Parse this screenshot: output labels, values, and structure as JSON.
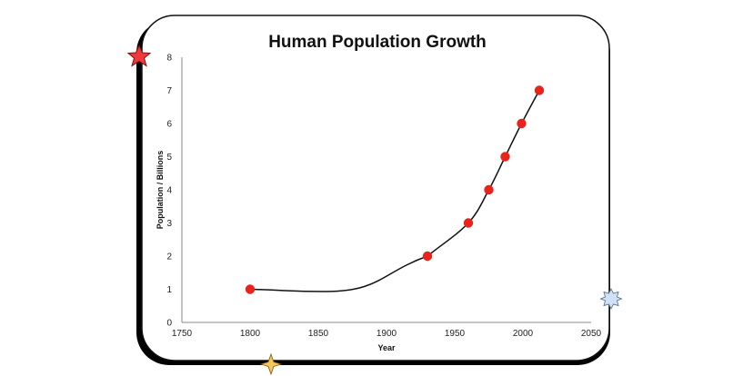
{
  "colors": {
    "frame_border": "#111111",
    "frame_shadow": "#000000",
    "point": "#e8231b",
    "curve": "#111111",
    "star_red": "#ee3a3a",
    "star_yellow": "#f7c65a",
    "star_blue": "#cfe0f7"
  },
  "decorations": [
    "red-star-icon",
    "yellow-sparkle-icon",
    "blue-badge-icon"
  ],
  "chart_data": {
    "type": "scatter",
    "title": "Human Population Growth",
    "xlabel": "Year",
    "ylabel": "Population / Billions",
    "xlim": [
      1750,
      2050
    ],
    "ylim": [
      0,
      8
    ],
    "x_ticks": [
      "1750",
      "1800",
      "1850",
      "1900",
      "1950",
      "2000",
      "2050"
    ],
    "y_ticks": [
      "0",
      "1",
      "2",
      "3",
      "4",
      "5",
      "6",
      "7",
      "8"
    ],
    "grid": false,
    "legend": "none",
    "series": [
      {
        "x": [
          1800,
          1930,
          1960,
          1975,
          1987,
          1999,
          2012
        ],
        "y": [
          1,
          2,
          3,
          4,
          5,
          6,
          7
        ]
      }
    ],
    "trendline": "smooth curve through points"
  }
}
